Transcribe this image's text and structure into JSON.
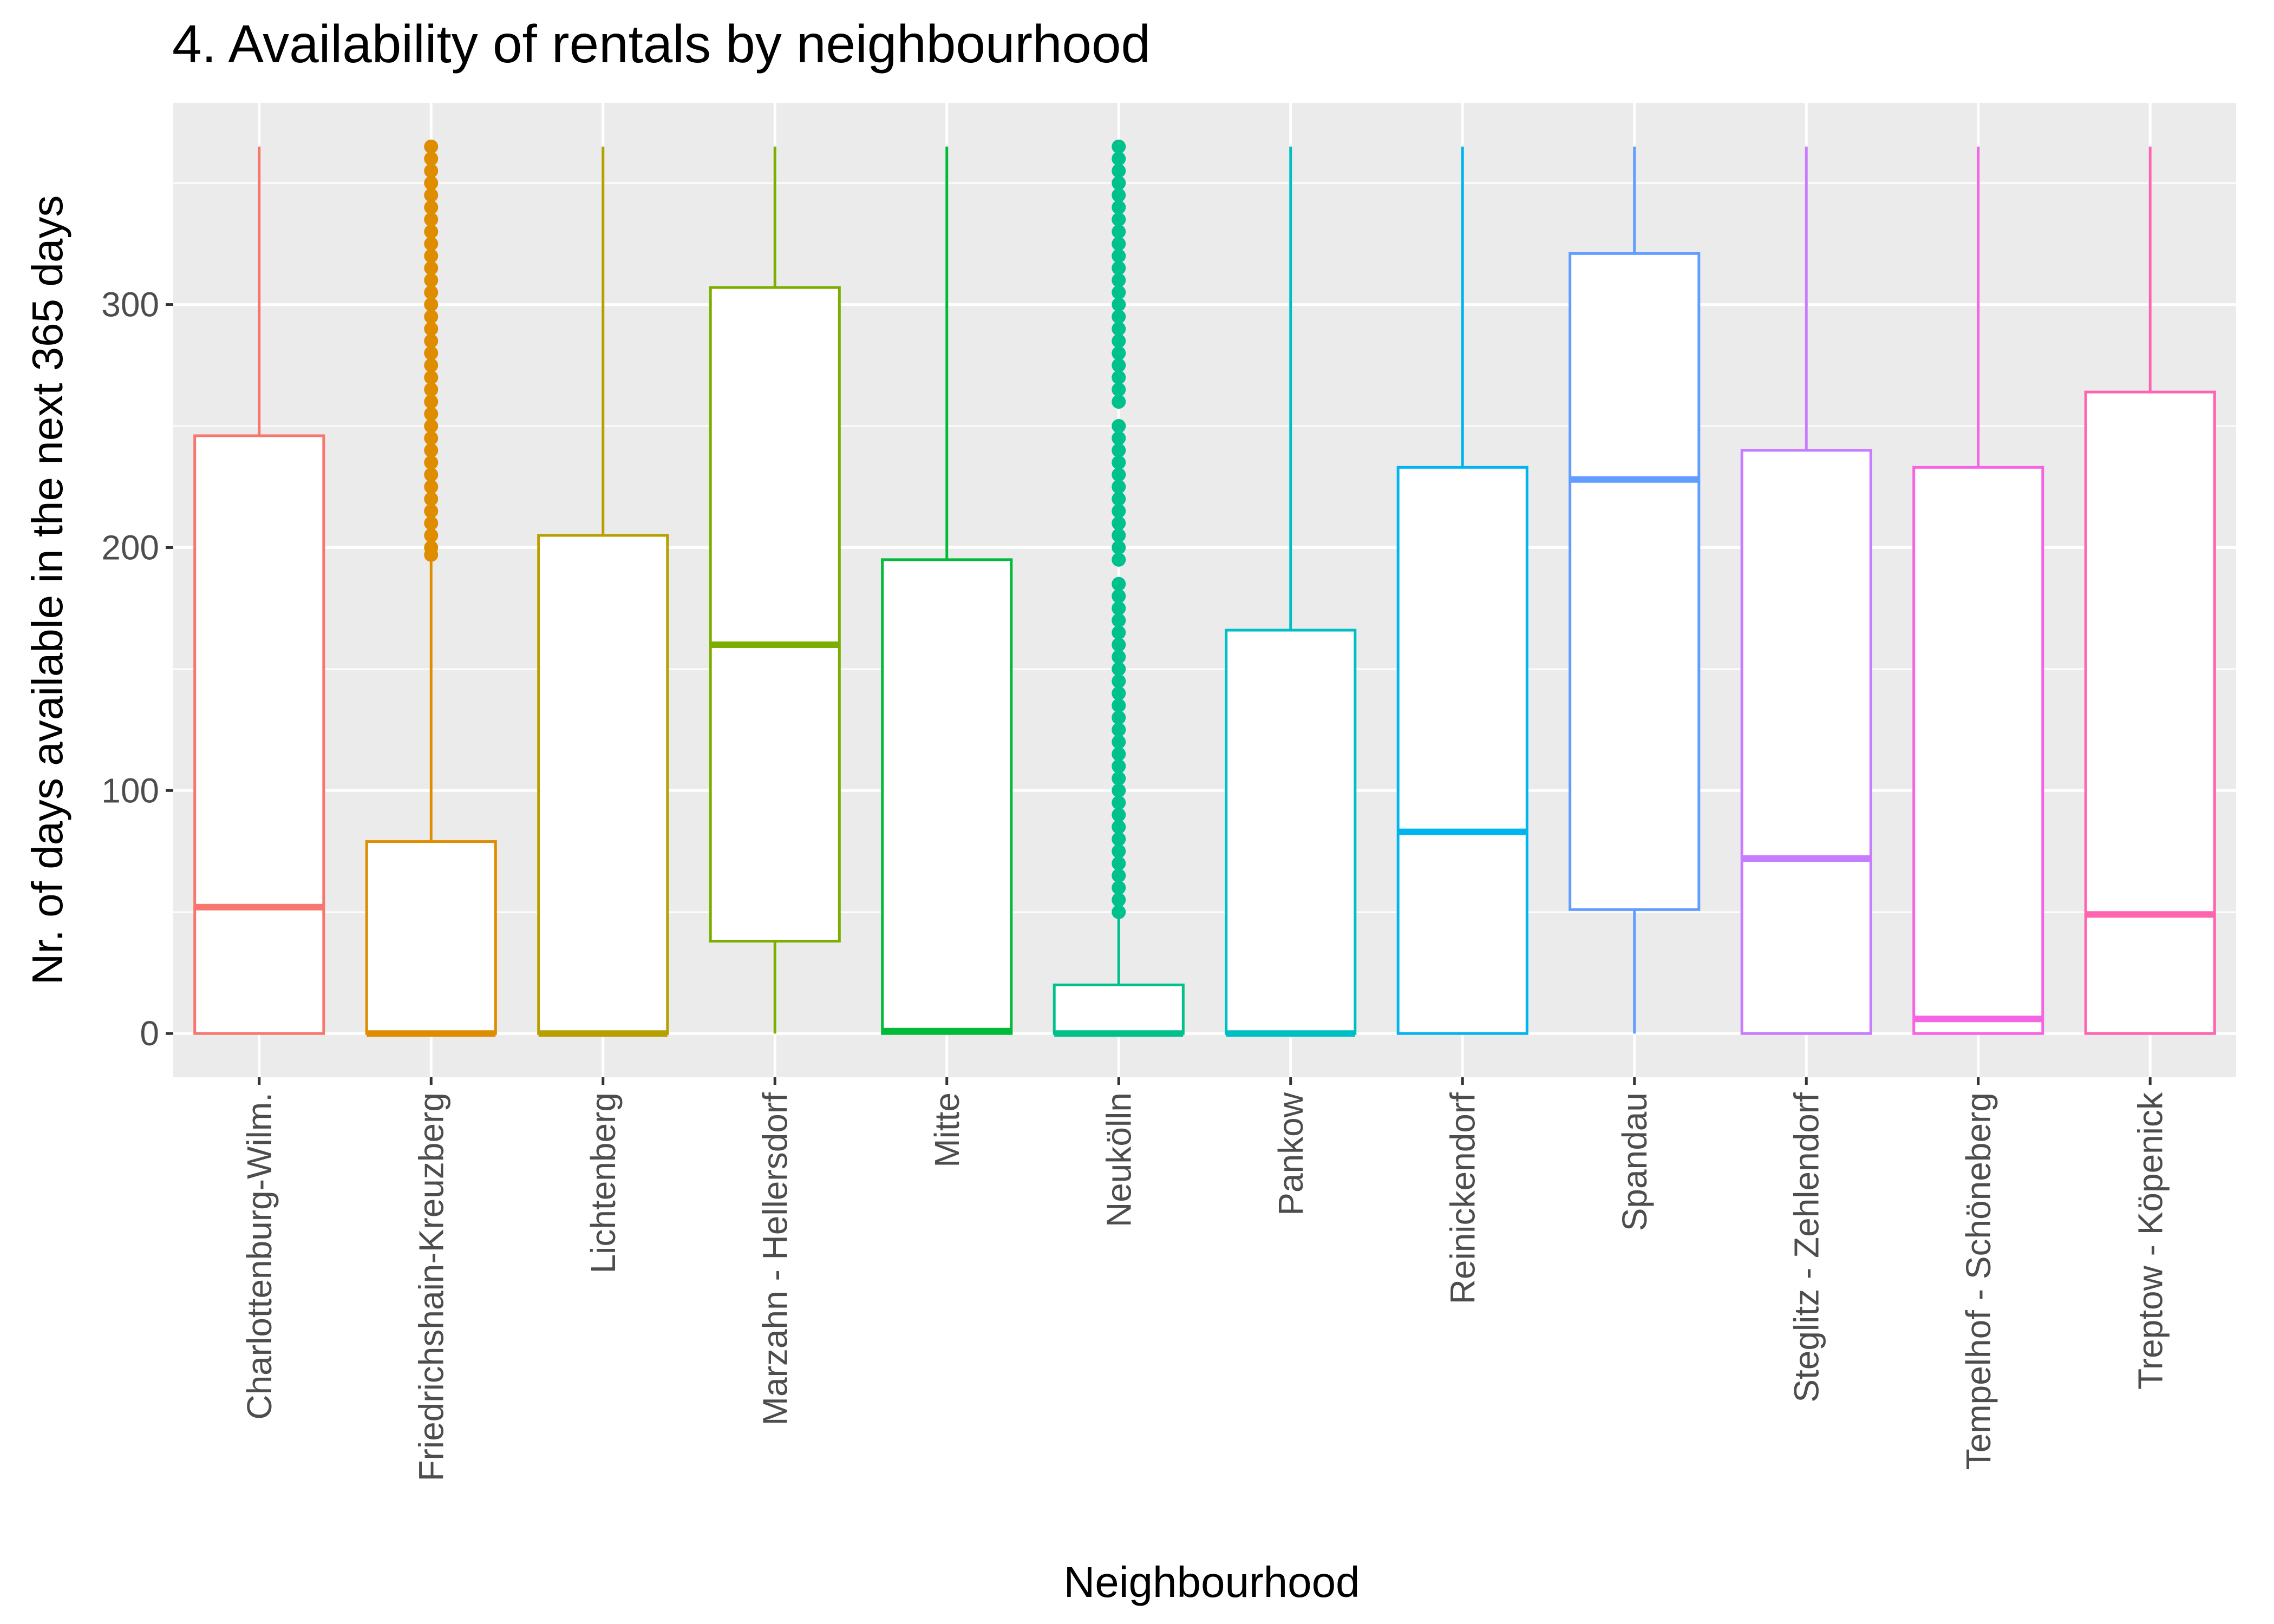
{
  "chart_data": {
    "type": "box",
    "title": "4. Availability of rentals by neighbourhood",
    "xlabel": "Neighbourhood",
    "ylabel": "Nr. of days available in the next 365 days",
    "ylim": [
      -18,
      383
    ],
    "yticks": [
      0,
      100,
      200,
      300
    ],
    "grid": true,
    "legend": "none",
    "colors": {
      "panel_background": "#ebebeb",
      "grid_line": "#ffffff",
      "box_fill": "#ffffff",
      "tick_mark": "#333333"
    },
    "categories": [
      "Charlottenburg-Wilm.",
      "Friedrichshain-Kreuzberg",
      "Lichtenberg",
      "Marzahn - Hellersdorf",
      "Mitte",
      "Neukölln",
      "Pankow",
      "Reinickendorf",
      "Spandau",
      "Steglitz - Zehlendorf",
      "Tempelhof - Schöneberg",
      "Treptow - Köpenick"
    ],
    "series": [
      {
        "category": "Charlottenburg-Wilm.",
        "color": "#F8766D",
        "min": 0,
        "q1": 0,
        "median": 52,
        "q3": 246,
        "max": 365,
        "outliers": []
      },
      {
        "category": "Friedrichshain-Kreuzberg",
        "color": "#DE8C00",
        "min": 0,
        "q1": 0,
        "median": 0,
        "q3": 79,
        "max": 197,
        "outliers": [
          197,
          200,
          205,
          210,
          215,
          220,
          225,
          230,
          235,
          240,
          245,
          250,
          255,
          260,
          265,
          270,
          275,
          280,
          285,
          290,
          295,
          300,
          305,
          310,
          315,
          320,
          325,
          330,
          335,
          340,
          345,
          350,
          355,
          360,
          365
        ]
      },
      {
        "category": "Lichtenberg",
        "color": "#B79F00",
        "min": 0,
        "q1": 0,
        "median": 0,
        "q3": 205,
        "max": 365,
        "outliers": []
      },
      {
        "category": "Marzahn - Hellersdorf",
        "color": "#7CAE00",
        "min": 0,
        "q1": 38,
        "median": 160,
        "q3": 307,
        "max": 365,
        "outliers": []
      },
      {
        "category": "Mitte",
        "color": "#00BA38",
        "min": 0,
        "q1": 0,
        "median": 1,
        "q3": 195,
        "max": 365,
        "outliers": []
      },
      {
        "category": "Neukölln",
        "color": "#00C08B",
        "min": 0,
        "q1": 0,
        "median": 0,
        "q3": 20,
        "max": 50,
        "outliers": [
          50,
          55,
          60,
          65,
          70,
          75,
          80,
          85,
          90,
          95,
          100,
          105,
          110,
          115,
          120,
          125,
          130,
          135,
          140,
          145,
          150,
          155,
          160,
          165,
          170,
          175,
          180,
          185,
          195,
          200,
          205,
          210,
          215,
          220,
          225,
          230,
          235,
          240,
          245,
          250,
          260,
          265,
          270,
          275,
          280,
          285,
          290,
          295,
          300,
          305,
          310,
          315,
          320,
          325,
          330,
          335,
          340,
          345,
          350,
          355,
          360,
          365
        ]
      },
      {
        "category": "Pankow",
        "color": "#00BFC4",
        "min": 0,
        "q1": 0,
        "median": 0,
        "q3": 166,
        "max": 365,
        "outliers": []
      },
      {
        "category": "Reinickendorf",
        "color": "#00B4F0",
        "min": 0,
        "q1": 0,
        "median": 83,
        "q3": 233,
        "max": 365,
        "outliers": []
      },
      {
        "category": "Spandau",
        "color": "#619CFF",
        "min": 0,
        "q1": 51,
        "median": 228,
        "q3": 321,
        "max": 365,
        "outliers": []
      },
      {
        "category": "Steglitz - Zehlendorf",
        "color": "#C77CFF",
        "min": 0,
        "q1": 0,
        "median": 72,
        "q3": 240,
        "max": 365,
        "outliers": []
      },
      {
        "category": "Tempelhof - Schöneberg",
        "color": "#F564E3",
        "min": 0,
        "q1": 0,
        "median": 6,
        "q3": 233,
        "max": 365,
        "outliers": []
      },
      {
        "category": "Treptow - Köpenick",
        "color": "#FF64B0",
        "min": 0,
        "q1": 0,
        "median": 49,
        "q3": 264,
        "max": 365,
        "outliers": []
      }
    ]
  }
}
